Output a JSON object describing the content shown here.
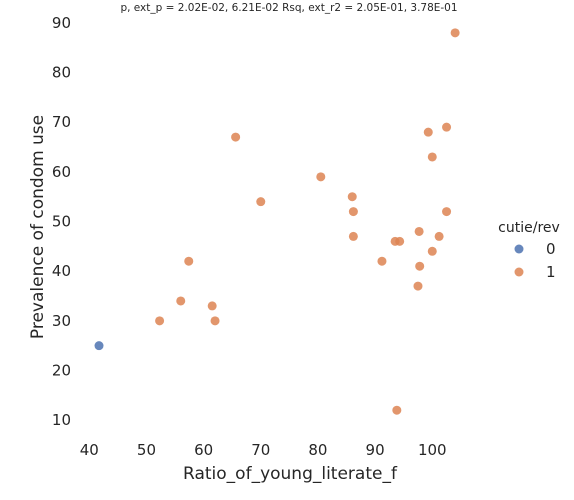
{
  "chart_data": {
    "type": "scatter",
    "title": "p, ext_p = 2.02E-02, 6.21E-02 Rsq, ext_r2 = 2.05E-01, 3.78E-01",
    "xlabel": "Ratio_of_young_literate_f",
    "ylabel": "Prevalence of condom use",
    "xlim": [
      37.5,
      108
    ],
    "ylim": [
      6,
      93
    ],
    "xticks": [
      40,
      50,
      60,
      70,
      80,
      90,
      100
    ],
    "yticks": [
      10,
      20,
      30,
      40,
      50,
      60,
      70,
      80,
      90
    ],
    "grid": false,
    "legend": {
      "title": "cutie/rev",
      "placement": "right",
      "entries": [
        {
          "label": "0",
          "color": "#4c72b0"
        },
        {
          "label": "1",
          "color": "#dd8452"
        }
      ]
    },
    "series": [
      {
        "name": "0",
        "color": "#4c72b0",
        "points": [
          [
            41.7,
            25
          ]
        ]
      },
      {
        "name": "1",
        "color": "#dd8452",
        "points": [
          [
            52.3,
            30
          ],
          [
            56.0,
            34
          ],
          [
            57.4,
            42
          ],
          [
            61.5,
            33
          ],
          [
            62.0,
            30
          ],
          [
            65.6,
            67
          ],
          [
            70.0,
            54
          ],
          [
            80.5,
            59
          ],
          [
            86.0,
            55
          ],
          [
            86.2,
            52
          ],
          [
            86.2,
            47
          ],
          [
            91.2,
            42
          ],
          [
            93.5,
            46
          ],
          [
            94.3,
            46
          ],
          [
            93.8,
            12
          ],
          [
            97.5,
            37
          ],
          [
            97.7,
            48
          ],
          [
            97.8,
            41
          ],
          [
            99.3,
            68
          ],
          [
            100.0,
            63
          ],
          [
            100.0,
            44
          ],
          [
            101.2,
            47
          ],
          [
            102.5,
            69
          ],
          [
            102.5,
            52
          ],
          [
            104.0,
            88
          ]
        ]
      }
    ]
  }
}
